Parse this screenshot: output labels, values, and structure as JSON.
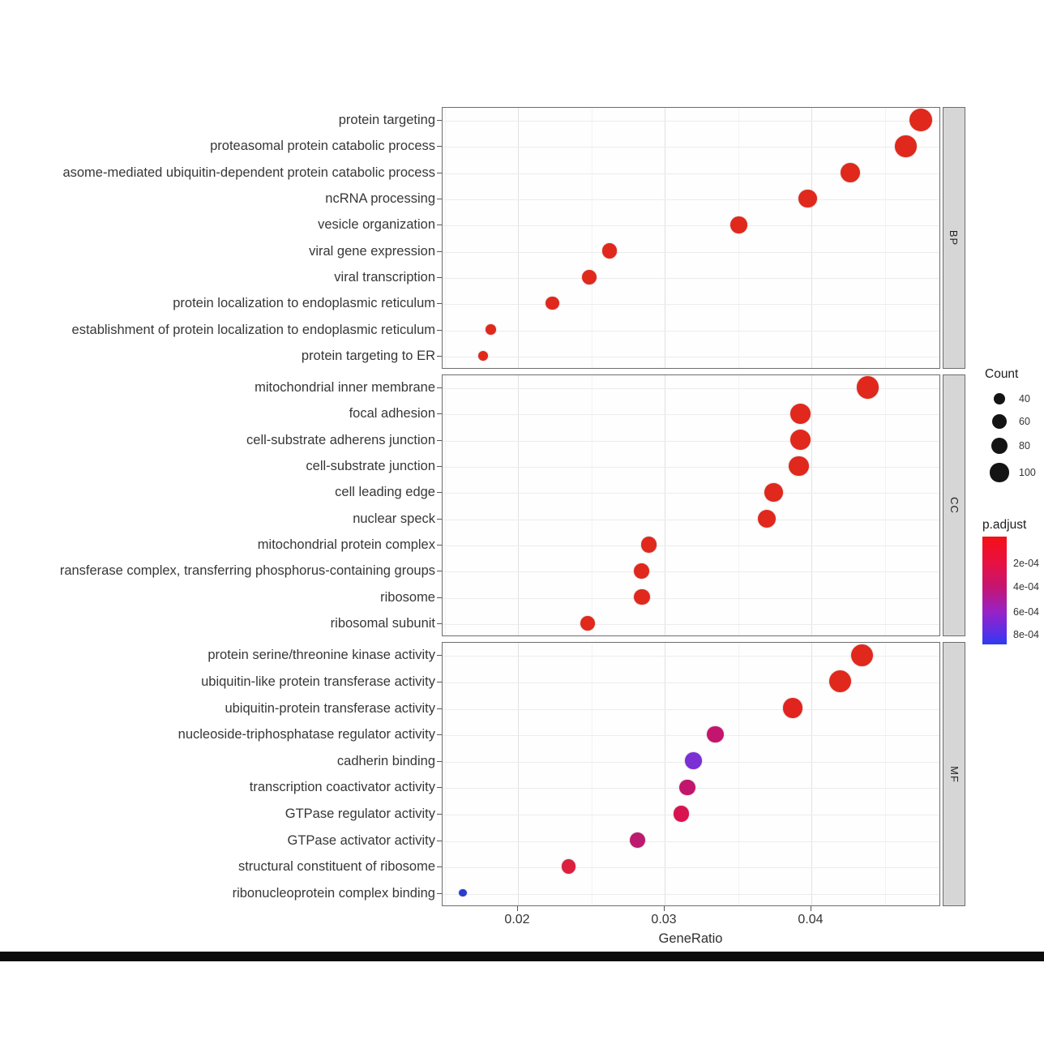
{
  "chart_data": {
    "type": "scatter",
    "subtype": "go-enrichment-dotplot",
    "xlabel": "GeneRatio",
    "x_ticks": [
      0.02,
      0.03,
      0.04
    ],
    "x_tick_labels": [
      "0.02",
      "0.03",
      "0.04"
    ],
    "x_range": [
      0.0149,
      0.049
    ],
    "grid": true,
    "facets": [
      {
        "strip": "BP",
        "terms": [
          {
            "label": "protein targeting",
            "gene_ratio": 0.0475,
            "count": 145,
            "p_adjust": 2e-05,
            "color": "#e0281c"
          },
          {
            "label": "proteasomal protein catabolic process",
            "gene_ratio": 0.0465,
            "count": 130,
            "p_adjust": 2e-05,
            "color": "#e0281c"
          },
          {
            "label": "asome-mediated ubiquitin-dependent protein catabolic process",
            "gene_ratio": 0.0427,
            "count": 110,
            "p_adjust": 2e-05,
            "color": "#e0281c"
          },
          {
            "label": "ncRNA processing",
            "gene_ratio": 0.0398,
            "count": 95,
            "p_adjust": 3e-05,
            "color": "#e0281c"
          },
          {
            "label": "vesicle organization",
            "gene_ratio": 0.0351,
            "count": 78,
            "p_adjust": 3e-05,
            "color": "#e0281c"
          },
          {
            "label": "viral gene expression",
            "gene_ratio": 0.0263,
            "count": 64,
            "p_adjust": 5e-05,
            "color": "#e0281c"
          },
          {
            "label": "viral transcription",
            "gene_ratio": 0.0249,
            "count": 60,
            "p_adjust": 5e-05,
            "color": "#e0281c"
          },
          {
            "label": "protein localization to endoplasmic reticulum",
            "gene_ratio": 0.0224,
            "count": 50,
            "p_adjust": 5e-05,
            "color": "#e0281c"
          },
          {
            "label": "establishment of protein localization to endoplasmic reticulum",
            "gene_ratio": 0.0182,
            "count": 30,
            "p_adjust": 0.0001,
            "color": "#e0281c"
          },
          {
            "label": "protein targeting to ER",
            "gene_ratio": 0.0177,
            "count": 27,
            "p_adjust": 0.0001,
            "color": "#e0281c"
          }
        ]
      },
      {
        "strip": "CC",
        "terms": [
          {
            "label": "mitochondrial inner membrane",
            "gene_ratio": 0.0439,
            "count": 140,
            "p_adjust": 2e-05,
            "color": "#e0281c"
          },
          {
            "label": "focal adhesion",
            "gene_ratio": 0.0393,
            "count": 115,
            "p_adjust": 3e-05,
            "color": "#e0281c"
          },
          {
            "label": "cell-substrate adherens junction",
            "gene_ratio": 0.0393,
            "count": 115,
            "p_adjust": 3e-05,
            "color": "#e0281c"
          },
          {
            "label": "cell-substrate junction",
            "gene_ratio": 0.0392,
            "count": 115,
            "p_adjust": 3e-05,
            "color": "#e0281c"
          },
          {
            "label": "cell leading edge",
            "gene_ratio": 0.0375,
            "count": 95,
            "p_adjust": 5e-05,
            "color": "#e0281c"
          },
          {
            "label": "nuclear speck",
            "gene_ratio": 0.037,
            "count": 92,
            "p_adjust": 5e-05,
            "color": "#e0281c"
          },
          {
            "label": "mitochondrial protein complex",
            "gene_ratio": 0.029,
            "count": 68,
            "p_adjust": 8e-05,
            "color": "#e0281c"
          },
          {
            "label": "ransferase complex, transferring phosphorus-containing groups",
            "gene_ratio": 0.0285,
            "count": 65,
            "p_adjust": 8e-05,
            "color": "#e0281c"
          },
          {
            "label": "ribosome",
            "gene_ratio": 0.0285,
            "count": 70,
            "p_adjust": 8e-05,
            "color": "#e0281c"
          },
          {
            "label": "ribosomal subunit",
            "gene_ratio": 0.0248,
            "count": 58,
            "p_adjust": 0.0001,
            "color": "#e0281c"
          }
        ]
      },
      {
        "strip": "MF",
        "terms": [
          {
            "label": "protein serine/threonine kinase activity",
            "gene_ratio": 0.0435,
            "count": 135,
            "p_adjust": 5e-05,
            "color": "#e0281c"
          },
          {
            "label": "ubiquitin-like protein transferase activity",
            "gene_ratio": 0.042,
            "count": 135,
            "p_adjust": 5e-05,
            "color": "#e0281c"
          },
          {
            "label": "ubiquitin-protein transferase activity",
            "gene_ratio": 0.0388,
            "count": 110,
            "p_adjust": 6e-05,
            "color": "#e22420"
          },
          {
            "label": "nucleoside-triphosphatase regulator activity",
            "gene_ratio": 0.0335,
            "count": 80,
            "p_adjust": 0.00045,
            "color": "#c4156e"
          },
          {
            "label": "cadherin binding",
            "gene_ratio": 0.032,
            "count": 80,
            "p_adjust": 0.00065,
            "color": "#7b2fd4"
          },
          {
            "label": "transcription coactivator activity",
            "gene_ratio": 0.0316,
            "count": 70,
            "p_adjust": 0.00046,
            "color": "#c2156d"
          },
          {
            "label": "GTPase regulator activity",
            "gene_ratio": 0.0312,
            "count": 70,
            "p_adjust": 0.00032,
            "color": "#d8134f"
          },
          {
            "label": "GTPase activator activity",
            "gene_ratio": 0.0282,
            "count": 70,
            "p_adjust": 0.0005,
            "color": "#bb1a6e"
          },
          {
            "label": "structural constituent of ribosome",
            "gene_ratio": 0.0235,
            "count": 58,
            "p_adjust": 0.0002,
            "color": "#dc1f3e"
          },
          {
            "label": "ribonucleoprotein complex binding",
            "gene_ratio": 0.0163,
            "count": 17,
            "p_adjust": 0.00085,
            "color": "#2a3bd0"
          }
        ]
      }
    ],
    "legend_count": {
      "title": "Count",
      "items": [
        {
          "label": "40",
          "count": 40
        },
        {
          "label": "60",
          "count": 60
        },
        {
          "label": "80",
          "count": 80
        },
        {
          "label": "100",
          "count": 100
        }
      ]
    },
    "legend_padjust": {
      "title": "p.adjust",
      "tick_labels": [
        "2e-04",
        "4e-04",
        "6e-04",
        "8e-04"
      ],
      "top_color": "#f51015",
      "bottom_color": "#2a3cf0"
    }
  }
}
